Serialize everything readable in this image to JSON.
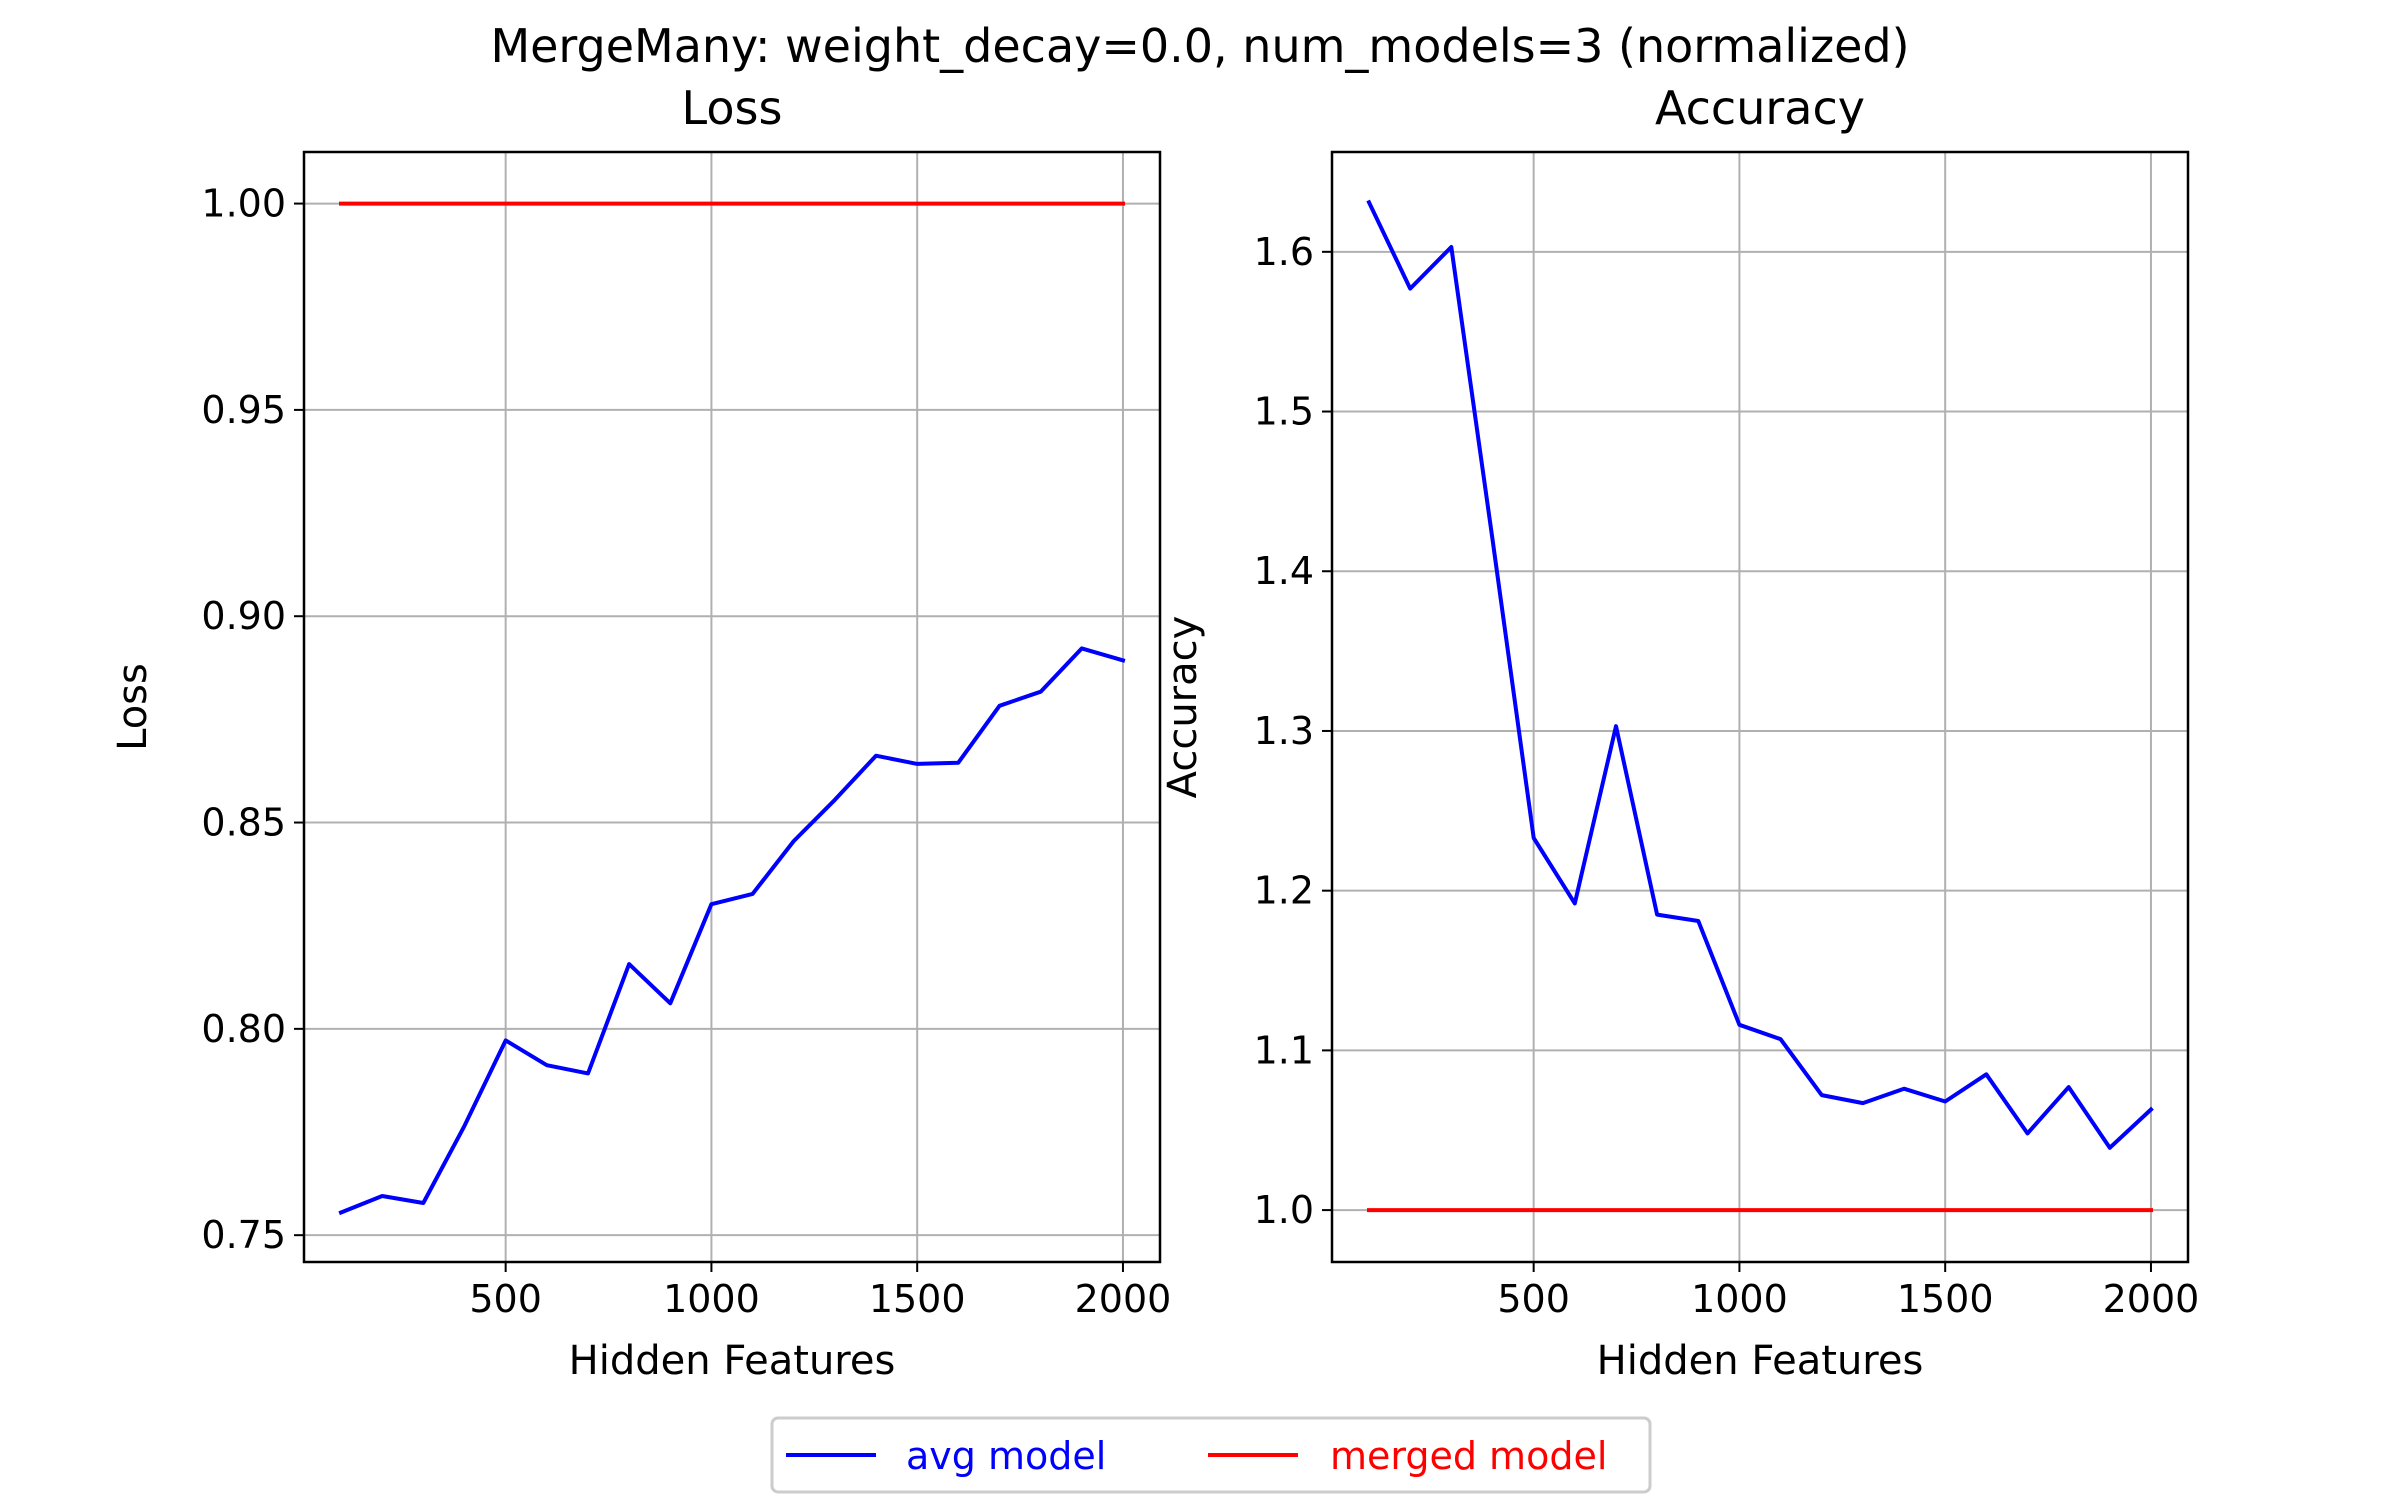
{
  "figure": {
    "suptitle": "MergeMany: weight_decay=0.0, num_models=3 (normalized)"
  },
  "legend": {
    "placement": "bottom-center",
    "entries": [
      {
        "label": "avg model",
        "color": "#0000ff"
      },
      {
        "label": "merged model",
        "color": "#ff0000"
      }
    ]
  },
  "chart_data": [
    {
      "type": "line",
      "title": "Loss",
      "xlabel": "Hidden Features",
      "ylabel": "Loss",
      "grid": true,
      "xlim": [
        10,
        2090
      ],
      "ylim": [
        0.7435,
        1.0125
      ],
      "xticks": [
        500,
        1000,
        1500,
        2000
      ],
      "xtick_labels": [
        "500",
        "1000",
        "1500",
        "2000"
      ],
      "yticks": [
        0.75,
        0.8,
        0.85,
        0.9,
        0.95,
        1.0
      ],
      "ytick_labels": [
        "0.75",
        "0.80",
        "0.85",
        "0.90",
        "0.95",
        "1.00"
      ],
      "x": [
        100,
        200,
        300,
        400,
        500,
        600,
        700,
        800,
        900,
        1000,
        1100,
        1200,
        1300,
        1400,
        1500,
        1600,
        1700,
        1800,
        1900,
        2000
      ],
      "series": [
        {
          "name": "avg model",
          "color": "#0000ff",
          "values": [
            0.7555,
            0.7595,
            0.7578,
            0.7765,
            0.7972,
            0.7912,
            0.7892,
            0.8157,
            0.8062,
            0.8302,
            0.8327,
            0.8455,
            0.8555,
            0.8662,
            0.8642,
            0.8645,
            0.8783,
            0.8817,
            0.8922,
            0.8893
          ]
        },
        {
          "name": "merged model",
          "color": "#ff0000",
          "values": [
            1.0,
            1.0,
            1.0,
            1.0,
            1.0,
            1.0,
            1.0,
            1.0,
            1.0,
            1.0,
            1.0,
            1.0,
            1.0,
            1.0,
            1.0,
            1.0,
            1.0,
            1.0,
            1.0,
            1.0
          ]
        }
      ]
    },
    {
      "type": "line",
      "title": "Accuracy",
      "xlabel": "Hidden Features",
      "ylabel": "Accuracy",
      "grid": true,
      "xlim": [
        10,
        2090
      ],
      "ylim": [
        0.9675,
        1.6625
      ],
      "xticks": [
        500,
        1000,
        1500,
        2000
      ],
      "xtick_labels": [
        "500",
        "1000",
        "1500",
        "2000"
      ],
      "yticks": [
        1.0,
        1.1,
        1.2,
        1.3,
        1.4,
        1.5,
        1.6
      ],
      "ytick_labels": [
        "1.0",
        "1.1",
        "1.2",
        "1.3",
        "1.4",
        "1.5",
        "1.6"
      ],
      "x": [
        100,
        200,
        300,
        400,
        500,
        600,
        700,
        800,
        900,
        1000,
        1100,
        1200,
        1300,
        1400,
        1500,
        1600,
        1700,
        1800,
        1900,
        2000
      ],
      "series": [
        {
          "name": "avg model",
          "color": "#0000ff",
          "values": [
            1.631,
            1.577,
            1.603,
            1.42,
            1.233,
            1.192,
            1.303,
            1.185,
            1.181,
            1.116,
            1.107,
            1.072,
            1.067,
            1.076,
            1.068,
            1.085,
            1.048,
            1.077,
            1.039,
            1.063
          ]
        },
        {
          "name": "merged model",
          "color": "#ff0000",
          "values": [
            1.0,
            1.0,
            1.0,
            1.0,
            1.0,
            1.0,
            1.0,
            1.0,
            1.0,
            1.0,
            1.0,
            1.0,
            1.0,
            1.0,
            1.0,
            1.0,
            1.0,
            1.0,
            1.0,
            1.0
          ]
        }
      ]
    }
  ]
}
